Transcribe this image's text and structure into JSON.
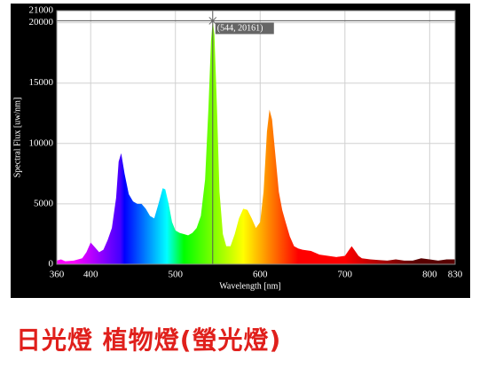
{
  "chart_data": {
    "type": "area",
    "xlabel": "Wavelength [nm]",
    "ylabel": "Spectral Flux [uw/nm]",
    "x": [
      360,
      365,
      370,
      380,
      390,
      395,
      400,
      405,
      410,
      415,
      420,
      425,
      430,
      433,
      436,
      440,
      445,
      450,
      455,
      460,
      465,
      470,
      475,
      480,
      485,
      488,
      492,
      496,
      500,
      505,
      510,
      515,
      520,
      525,
      530,
      535,
      539,
      542,
      544,
      546,
      549,
      552,
      556,
      560,
      565,
      570,
      575,
      580,
      585,
      590,
      595,
      600,
      604,
      608,
      611,
      614,
      618,
      622,
      626,
      630,
      635,
      640,
      645,
      650,
      660,
      670,
      680,
      690,
      700,
      705,
      708,
      712,
      716,
      720,
      730,
      740,
      750,
      760,
      770,
      780,
      790,
      800,
      810,
      820,
      830
    ],
    "values": [
      300,
      400,
      250,
      300,
      500,
      1000,
      1800,
      1400,
      1000,
      1200,
      2000,
      3000,
      5500,
      8500,
      9200,
      7500,
      5800,
      5200,
      5000,
      5000,
      4600,
      4000,
      3800,
      5000,
      6300,
      6200,
      5000,
      3500,
      2800,
      2600,
      2500,
      2400,
      2600,
      3000,
      4000,
      7000,
      13000,
      18500,
      20161,
      19000,
      13000,
      6000,
      2500,
      1500,
      1500,
      2500,
      3800,
      4600,
      4500,
      3800,
      3000,
      3500,
      6000,
      11000,
      12800,
      12000,
      9000,
      6000,
      4500,
      3500,
      2300,
      1500,
      1300,
      1200,
      1100,
      800,
      700,
      600,
      700,
      1200,
      1500,
      1100,
      700,
      500,
      400,
      350,
      300,
      400,
      300,
      300,
      500,
      400,
      300,
      400,
      400
    ],
    "xlim": [
      360,
      830
    ],
    "ylim": [
      0,
      21000
    ],
    "xticks": [
      360,
      400,
      500,
      600,
      700,
      800,
      830
    ],
    "yticks": [
      0,
      5000,
      10000,
      15000,
      20000,
      21000
    ],
    "grid": true,
    "cursor": {
      "x": 544,
      "y": 20161,
      "label": "(544, 20161)"
    }
  },
  "caption": "日光燈 植物燈(螢光燈)"
}
